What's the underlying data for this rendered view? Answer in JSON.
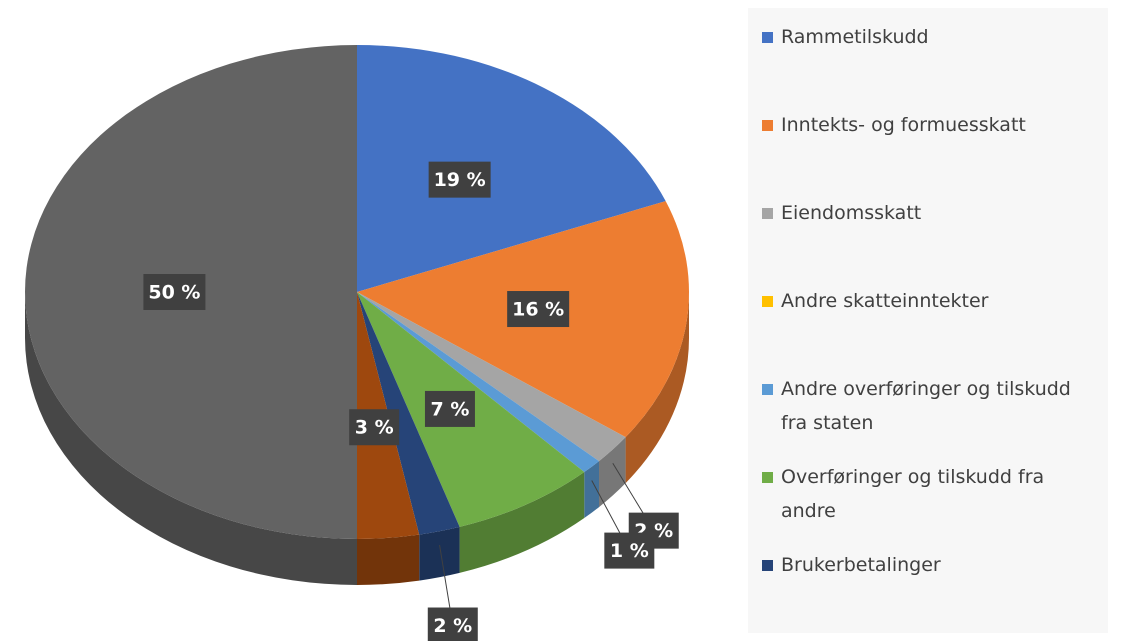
{
  "chart_data": {
    "type": "pie",
    "categories": [
      "Rammetilskudd",
      "Inntekts- og formuesskatt",
      "Eiendomsskatt",
      "Andre skatteinntekter",
      "Andre overføringer og tilskudd fra staten",
      "Overføringer og tilskudd fra andre",
      "Brukerbetalinger",
      null,
      null
    ],
    "values": [
      19,
      16,
      2,
      0,
      1,
      7,
      2,
      3,
      50
    ],
    "value_labels": [
      "19 %",
      "16 %",
      "2 %",
      null,
      "1 %",
      "7 %",
      "2 %",
      "3 %",
      "50 %"
    ],
    "colors": [
      "#4472c4",
      "#ed7d31",
      "#a5a5a5",
      "#ffc000",
      "#5b9bd5",
      "#70ad47",
      "#264478",
      "#9e480e",
      "#636363"
    ],
    "legend": "right"
  }
}
